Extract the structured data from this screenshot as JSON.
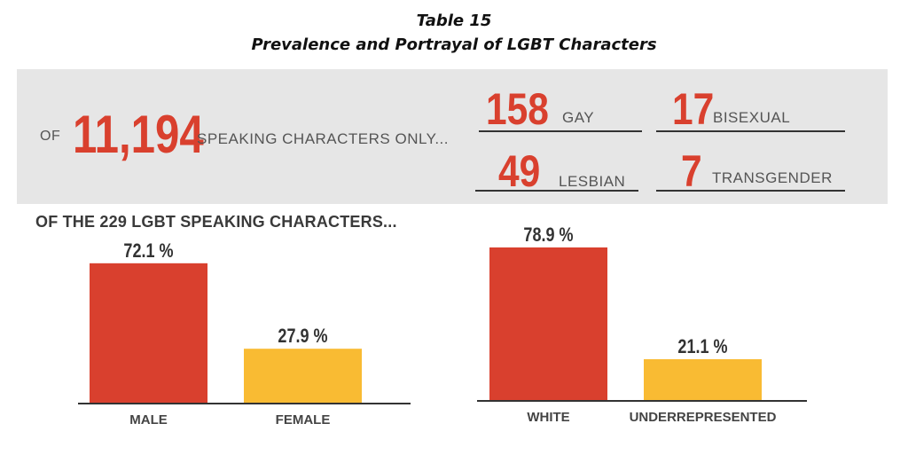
{
  "title_line1": "Table 15",
  "title_line2": "Prevalence and Portrayal of LGBT Characters",
  "banner": {
    "of": "OF",
    "total": "11,194",
    "suffix": "SPEAKING CHARACTERS ONLY...",
    "stats": [
      {
        "value": "158",
        "label": "GAY"
      },
      {
        "value": "17",
        "label": "BISEXUAL"
      },
      {
        "value": "49",
        "label": "LESBIAN"
      },
      {
        "value": "7",
        "label": "TRANSGENDER"
      }
    ]
  },
  "section_heading": "OF THE 229 LGBT SPEAKING CHARACTERS...",
  "colors": {
    "red": "#d9402e",
    "yellow": "#f9bb33",
    "banner_bg": "#e6e6e6"
  },
  "chart_data": [
    {
      "type": "bar",
      "categories": [
        "MALE",
        "FEMALE"
      ],
      "values": [
        72.1,
        27.9
      ],
      "value_labels": [
        "72.1 %",
        "27.9 %"
      ],
      "colors": [
        "#d9402e",
        "#f9bb33"
      ],
      "ylim": [
        0,
        80
      ]
    },
    {
      "type": "bar",
      "categories": [
        "WHITE",
        "UNDERREPRESENTED"
      ],
      "values": [
        78.9,
        21.1
      ],
      "value_labels": [
        "78.9 %",
        "21.1 %"
      ],
      "colors": [
        "#d9402e",
        "#f9bb33"
      ],
      "ylim": [
        0,
        80
      ]
    }
  ]
}
